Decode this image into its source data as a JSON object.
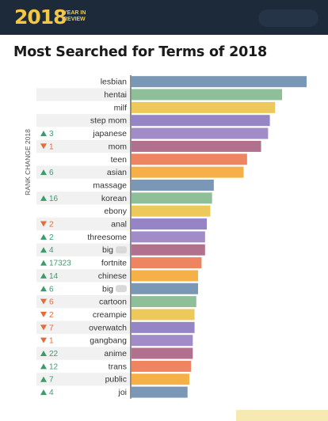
{
  "header": {
    "logo_year": "2018",
    "logo_line1": "YEAR IN",
    "logo_line2": "REVIEW"
  },
  "title": "Most Searched for Terms of 2018",
  "colors": {
    "header_bg": "#1c2a3a",
    "logo": "#f2c744",
    "up": "#3d9a6d",
    "down": "#e06d3b",
    "palette": [
      "#7a97b6",
      "#8ebf99",
      "#ecc95a",
      "#9585c7",
      "#a28cc7",
      "#b2708f",
      "#ef8560",
      "#f6b048"
    ]
  },
  "chart_data": {
    "type": "bar",
    "orientation": "horizontal",
    "title": "Most Searched for Terms of 2018",
    "side_label": "RANK CHANGE 2018",
    "xlim": [
      0,
      100
    ],
    "grid": false,
    "categories": [
      "lesbian",
      "hentai",
      "milf",
      "step mom",
      "japanese",
      "mom",
      "teen",
      "asian",
      "massage",
      "korean",
      "ebony",
      "anal",
      "threesome",
      "big",
      "fortnite",
      "chinese",
      "big",
      "cartoon",
      "creampie",
      "overwatch",
      "gangbang",
      "anime",
      "trans",
      "public",
      "joi"
    ],
    "values": [
      100,
      86,
      82,
      79,
      78,
      74,
      66,
      64,
      47,
      46,
      45,
      43,
      42,
      42,
      40,
      38,
      38,
      37,
      36,
      36,
      35,
      35,
      34,
      33,
      32
    ],
    "rank_change": [
      {
        "dir": "",
        "value": ""
      },
      {
        "dir": "",
        "value": ""
      },
      {
        "dir": "",
        "value": ""
      },
      {
        "dir": "",
        "value": ""
      },
      {
        "dir": "up",
        "value": "3"
      },
      {
        "dir": "down",
        "value": "1"
      },
      {
        "dir": "",
        "value": ""
      },
      {
        "dir": "up",
        "value": "6"
      },
      {
        "dir": "",
        "value": ""
      },
      {
        "dir": "up",
        "value": "16"
      },
      {
        "dir": "",
        "value": ""
      },
      {
        "dir": "down",
        "value": "2"
      },
      {
        "dir": "up",
        "value": "2"
      },
      {
        "dir": "up",
        "value": "4"
      },
      {
        "dir": "up",
        "value": "17323"
      },
      {
        "dir": "up",
        "value": "14"
      },
      {
        "dir": "up",
        "value": "6"
      },
      {
        "dir": "down",
        "value": "6"
      },
      {
        "dir": "down",
        "value": "2"
      },
      {
        "dir": "down",
        "value": "7"
      },
      {
        "dir": "down",
        "value": "1"
      },
      {
        "dir": "up",
        "value": "22"
      },
      {
        "dir": "up",
        "value": "12"
      },
      {
        "dir": "up",
        "value": "7"
      },
      {
        "dir": "up",
        "value": "4"
      }
    ]
  }
}
